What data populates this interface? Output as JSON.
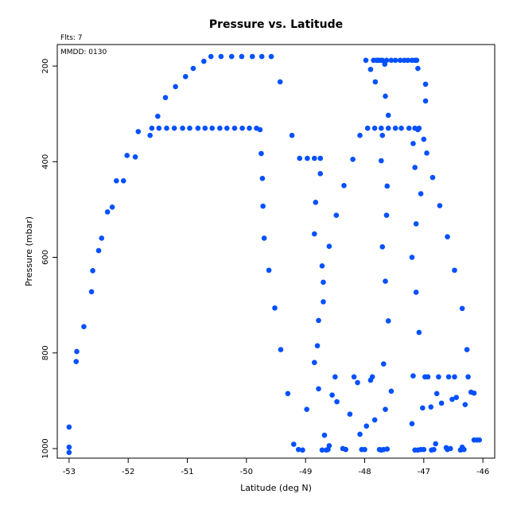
{
  "chart_data": {
    "type": "scatter",
    "title": "Pressure vs. Latitude",
    "annotations": [
      "Flts: 7",
      "MMDD: 0130"
    ],
    "xlabel": "Latitude (deg N)",
    "ylabel": "Pressure (mbar)",
    "xlim": [
      -53.2,
      -45.8
    ],
    "ylim": [
      1020,
      155
    ],
    "y_inverted": true,
    "xticks": [
      -53,
      -52,
      -51,
      -50,
      -49,
      -48,
      -47,
      -46
    ],
    "yticks": [
      200,
      400,
      600,
      800,
      1000
    ],
    "grid": false,
    "marker_color": "#0050ff",
    "points": [
      [
        -53.0,
        955
      ],
      [
        -53.0,
        997
      ],
      [
        -53.0,
        1008
      ],
      [
        -52.88,
        818
      ],
      [
        -52.87,
        797
      ],
      [
        -52.75,
        745
      ],
      [
        -52.62,
        672
      ],
      [
        -52.6,
        628
      ],
      [
        -52.5,
        586
      ],
      [
        -52.45,
        560
      ],
      [
        -52.35,
        505
      ],
      [
        -52.27,
        495
      ],
      [
        -52.2,
        440
      ],
      [
        -52.08,
        440
      ],
      [
        -52.02,
        387
      ],
      [
        -51.88,
        390
      ],
      [
        -51.83,
        337
      ],
      [
        -51.63,
        345
      ],
      [
        -51.6,
        330
      ],
      [
        -51.5,
        305
      ],
      [
        -51.37,
        266
      ],
      [
        -51.2,
        243
      ],
      [
        -51.03,
        222
      ],
      [
        -50.9,
        205
      ],
      [
        -50.72,
        190
      ],
      [
        -50.6,
        180
      ],
      [
        -50.43,
        180
      ],
      [
        -50.25,
        180
      ],
      [
        -50.08,
        180
      ],
      [
        -49.9,
        180
      ],
      [
        -49.74,
        180
      ],
      [
        -49.58,
        180
      ],
      [
        -51.48,
        330
      ],
      [
        -51.35,
        330
      ],
      [
        -51.22,
        330
      ],
      [
        -51.08,
        330
      ],
      [
        -50.96,
        330
      ],
      [
        -50.82,
        330
      ],
      [
        -50.7,
        330
      ],
      [
        -50.58,
        330
      ],
      [
        -50.45,
        330
      ],
      [
        -50.33,
        330
      ],
      [
        -50.2,
        330
      ],
      [
        -50.07,
        330
      ],
      [
        -49.95,
        330
      ],
      [
        -49.83,
        330
      ],
      [
        -49.77,
        333
      ],
      [
        -49.75,
        383
      ],
      [
        -49.73,
        435
      ],
      [
        -49.72,
        493
      ],
      [
        -49.7,
        560
      ],
      [
        -49.62,
        627
      ],
      [
        -49.52,
        706
      ],
      [
        -49.42,
        793
      ],
      [
        -49.43,
        233
      ],
      [
        -49.23,
        345
      ],
      [
        -49.3,
        885
      ],
      [
        -49.2,
        991
      ],
      [
        -49.12,
        1002
      ],
      [
        -49.05,
        1003
      ],
      [
        -49.1,
        393
      ],
      [
        -48.97,
        393
      ],
      [
        -48.85,
        393
      ],
      [
        -48.75,
        393
      ],
      [
        -48.98,
        918
      ],
      [
        -48.85,
        820
      ],
      [
        -48.83,
        485
      ],
      [
        -48.85,
        551
      ],
      [
        -48.8,
        785
      ],
      [
        -48.78,
        732
      ],
      [
        -48.75,
        425
      ],
      [
        -48.72,
        618
      ],
      [
        -48.7,
        652
      ],
      [
        -48.7,
        693
      ],
      [
        -48.68,
        972
      ],
      [
        -48.72,
        1003
      ],
      [
        -48.65,
        1003
      ],
      [
        -48.62,
        1002
      ],
      [
        -48.6,
        994
      ],
      [
        -48.6,
        577
      ],
      [
        -48.55,
        888
      ],
      [
        -48.47,
        902
      ],
      [
        -48.5,
        850
      ],
      [
        -48.48,
        512
      ],
      [
        -48.78,
        875
      ],
      [
        -48.37,
        1000
      ],
      [
        -48.32,
        1002
      ],
      [
        -48.35,
        450
      ],
      [
        -48.25,
        928
      ],
      [
        -48.2,
        395
      ],
      [
        -48.18,
        850
      ],
      [
        -48.12,
        862
      ],
      [
        -48.08,
        970
      ],
      [
        -48.05,
        1002
      ],
      [
        -48.0,
        1002
      ],
      [
        -48.08,
        345
      ],
      [
        -47.95,
        330
      ],
      [
        -47.83,
        330
      ],
      [
        -47.72,
        330
      ],
      [
        -47.6,
        330
      ],
      [
        -47.48,
        330
      ],
      [
        -47.38,
        330
      ],
      [
        -47.25,
        330
      ],
      [
        -47.15,
        330
      ],
      [
        -47.08,
        330
      ],
      [
        -47.1,
        333
      ],
      [
        -47.97,
        953
      ],
      [
        -47.9,
        857
      ],
      [
        -47.87,
        850
      ],
      [
        -47.83,
        940
      ],
      [
        -47.75,
        1002
      ],
      [
        -47.72,
        1003
      ],
      [
        -47.68,
        1002
      ],
      [
        -47.62,
        1001
      ],
      [
        -47.72,
        398
      ],
      [
        -47.7,
        578
      ],
      [
        -47.7,
        345
      ],
      [
        -47.68,
        823
      ],
      [
        -47.65,
        650
      ],
      [
        -47.65,
        918
      ],
      [
        -47.63,
        512
      ],
      [
        -47.62,
        451
      ],
      [
        -47.6,
        733
      ],
      [
        -47.55,
        880
      ],
      [
        -47.6,
        303
      ],
      [
        -47.65,
        263
      ],
      [
        -47.98,
        188
      ],
      [
        -47.9,
        207
      ],
      [
        -47.85,
        188
      ],
      [
        -47.82,
        233
      ],
      [
        -47.8,
        188
      ],
      [
        -47.77,
        188
      ],
      [
        -47.73,
        188
      ],
      [
        -47.7,
        188
      ],
      [
        -47.66,
        196
      ],
      [
        -47.63,
        188
      ],
      [
        -47.55,
        188
      ],
      [
        -47.48,
        188
      ],
      [
        -47.4,
        188
      ],
      [
        -47.33,
        188
      ],
      [
        -47.27,
        188
      ],
      [
        -47.2,
        188
      ],
      [
        -47.15,
        188
      ],
      [
        -47.12,
        188
      ],
      [
        -47.1,
        205
      ],
      [
        -47.2,
        948
      ],
      [
        -47.15,
        1003
      ],
      [
        -47.1,
        1003
      ],
      [
        -47.05,
        1002
      ],
      [
        -47.0,
        1002
      ],
      [
        -47.18,
        848
      ],
      [
        -47.2,
        600
      ],
      [
        -47.18,
        362
      ],
      [
        -47.15,
        412
      ],
      [
        -47.13,
        530
      ],
      [
        -47.13,
        673
      ],
      [
        -47.08,
        757
      ],
      [
        -47.05,
        467
      ],
      [
        -47.0,
        353
      ],
      [
        -46.97,
        273
      ],
      [
        -46.95,
        382
      ],
      [
        -46.97,
        238
      ],
      [
        -47.02,
        915
      ],
      [
        -46.98,
        850
      ],
      [
        -46.93,
        850
      ],
      [
        -46.88,
        913
      ],
      [
        -46.87,
        1003
      ],
      [
        -46.83,
        1002
      ],
      [
        -46.8,
        990
      ],
      [
        -46.85,
        433
      ],
      [
        -46.78,
        885
      ],
      [
        -46.73,
        492
      ],
      [
        -46.75,
        850
      ],
      [
        -46.7,
        905
      ],
      [
        -46.62,
        998
      ],
      [
        -46.6,
        1002
      ],
      [
        -46.55,
        1000
      ],
      [
        -46.6,
        557
      ],
      [
        -46.58,
        850
      ],
      [
        -46.52,
        897
      ],
      [
        -46.48,
        850
      ],
      [
        -46.45,
        893
      ],
      [
        -46.48,
        627
      ],
      [
        -46.38,
        1003
      ],
      [
        -46.32,
        1002
      ],
      [
        -46.35,
        997
      ],
      [
        -46.35,
        707
      ],
      [
        -46.3,
        908
      ],
      [
        -46.25,
        850
      ],
      [
        -46.27,
        793
      ],
      [
        -46.2,
        882
      ],
      [
        -46.15,
        884
      ],
      [
        -46.15,
        982
      ],
      [
        -46.1,
        982
      ],
      [
        -46.06,
        982
      ]
    ]
  }
}
